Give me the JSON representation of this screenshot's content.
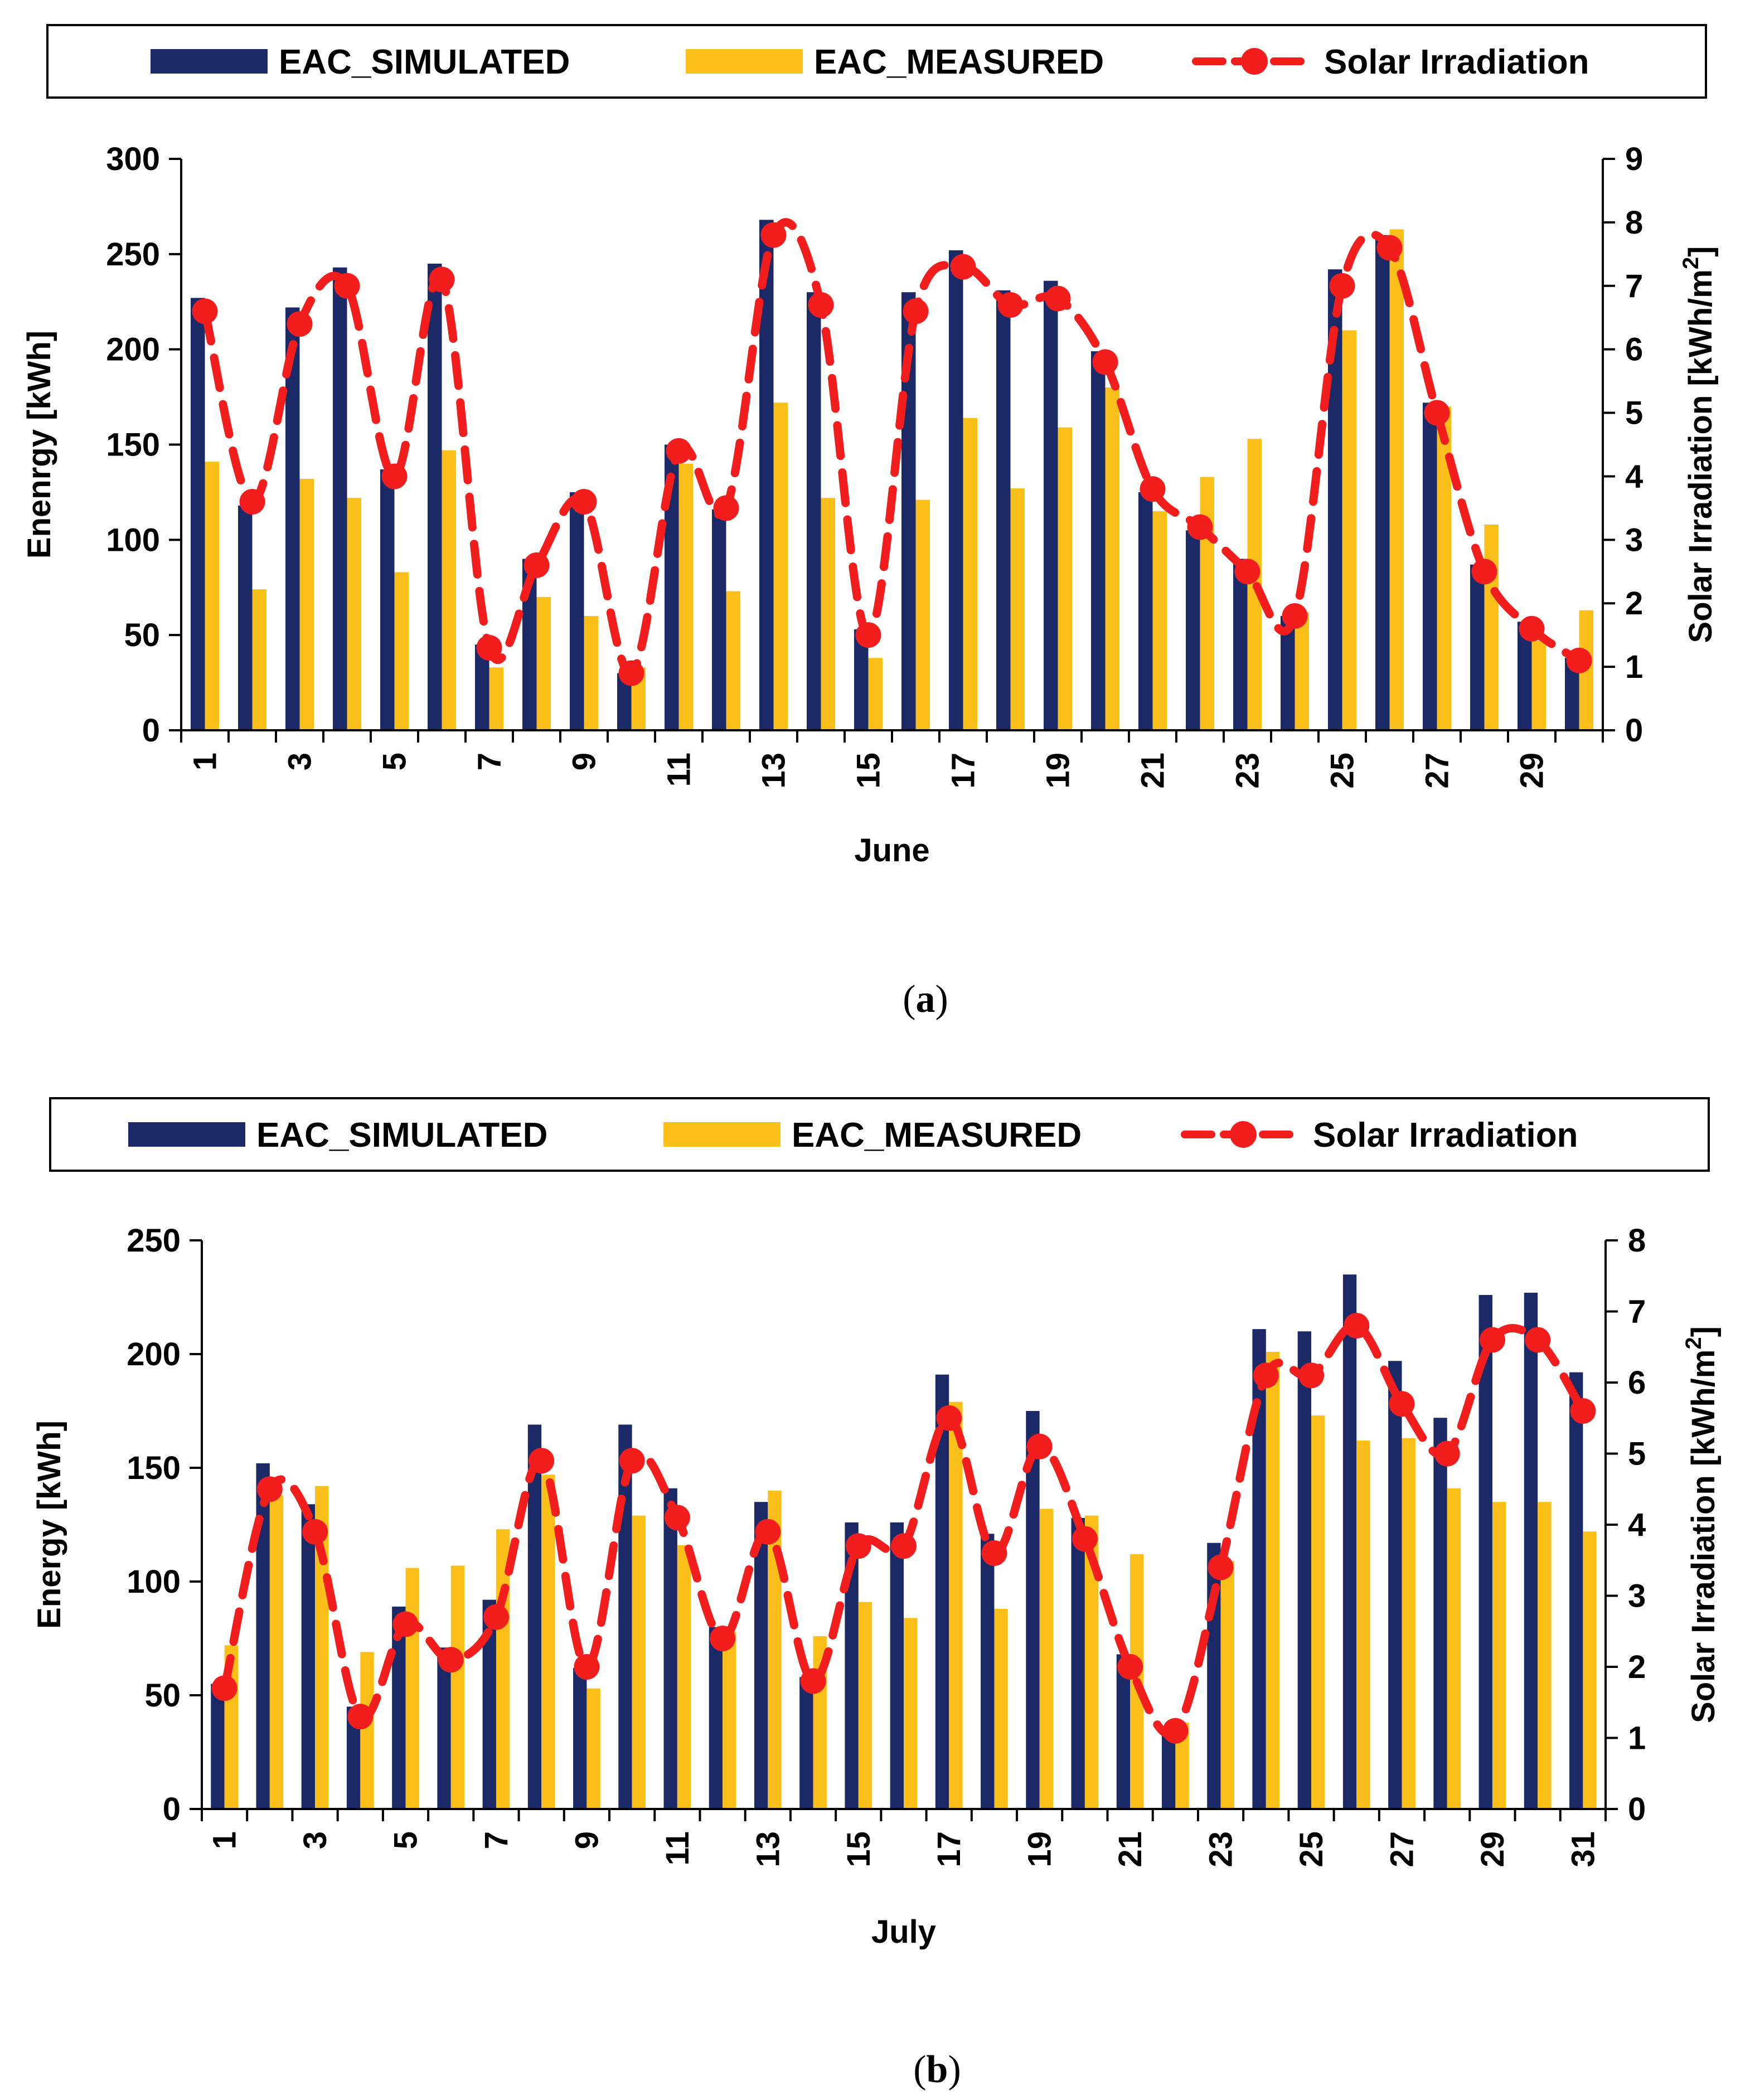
{
  "chart_data": [
    {
      "id": "a",
      "type": "bar",
      "caption": "(a)",
      "caption_letter": "a",
      "caption_open": "(",
      "caption_close": ")",
      "xlabel": "June",
      "ylabel": "Enenrgy [kWh]",
      "y2label_base": "Solar Irradiation [kWh/m",
      "y2label_sup": "2",
      "y2label_end": "]",
      "ylim": [
        0,
        300
      ],
      "yticks": [
        0,
        50,
        100,
        150,
        200,
        250,
        300
      ],
      "y2lim": [
        0,
        9
      ],
      "y2ticks": [
        0,
        1,
        2,
        3,
        4,
        5,
        6,
        7,
        8,
        9
      ],
      "xtick_labels": [
        "1",
        "3",
        "5",
        "7",
        "9",
        "11",
        "13",
        "15",
        "17",
        "19",
        "21",
        "23",
        "25",
        "27",
        "29"
      ],
      "categories": [
        1,
        2,
        3,
        4,
        5,
        6,
        7,
        8,
        9,
        10,
        11,
        12,
        13,
        14,
        15,
        16,
        17,
        18,
        19,
        20,
        21,
        22,
        23,
        24,
        25,
        26,
        27,
        28,
        29,
        30
      ],
      "legend": [
        "EAC_SIMULATED",
        "EAC_MEASURED",
        "Solar Irradiation"
      ],
      "colors": {
        "simulated": "#1b2a66",
        "measured": "#fbbf1a",
        "irradiation": "#f21d1d"
      },
      "series": [
        {
          "name": "EAC_SIMULATED",
          "values": [
            227,
            118,
            222,
            243,
            137,
            245,
            45,
            90,
            125,
            30,
            150,
            116,
            268,
            230,
            53,
            230,
            252,
            231,
            236,
            199,
            125,
            105,
            90,
            60,
            242,
            260,
            172,
            87,
            57,
            38
          ]
        },
        {
          "name": "EAC_MEASURED",
          "values": [
            141,
            74,
            132,
            122,
            83,
            147,
            33,
            70,
            60,
            33,
            140,
            73,
            172,
            122,
            38,
            121,
            164,
            127,
            159,
            180,
            115,
            133,
            153,
            62,
            210,
            263,
            170,
            108,
            47,
            63
          ]
        },
        {
          "name": "Solar Irradiation",
          "axis": "right",
          "values": [
            6.6,
            3.6,
            6.4,
            7.0,
            4.0,
            7.1,
            1.3,
            2.6,
            3.6,
            0.9,
            4.4,
            3.5,
            7.8,
            6.7,
            1.5,
            6.6,
            7.3,
            6.7,
            6.8,
            5.8,
            3.8,
            3.2,
            2.5,
            1.8,
            7.0,
            7.6,
            5.0,
            2.5,
            1.6,
            1.1
          ]
        }
      ]
    },
    {
      "id": "b",
      "type": "bar",
      "caption": "(b)",
      "caption_letter": "b",
      "caption_open": "(",
      "caption_close": ")",
      "xlabel": "July",
      "ylabel": "Energy [kWh]",
      "y2label_base": "Solar Irradiation [kWh/m",
      "y2label_sup": "2",
      "y2label_end": "]",
      "ylim": [
        0,
        250
      ],
      "yticks": [
        0,
        50,
        100,
        150,
        200,
        250
      ],
      "y2lim": [
        0,
        8
      ],
      "y2ticks": [
        0,
        1,
        2,
        3,
        4,
        5,
        6,
        7,
        8
      ],
      "xtick_labels": [
        "1",
        "3",
        "5",
        "7",
        "9",
        "11",
        "13",
        "15",
        "17",
        "19",
        "21",
        "23",
        "25",
        "27",
        "29",
        "31"
      ],
      "categories": [
        1,
        2,
        3,
        4,
        5,
        6,
        7,
        8,
        9,
        10,
        11,
        12,
        13,
        14,
        15,
        16,
        17,
        18,
        19,
        20,
        21,
        22,
        23,
        24,
        25,
        26,
        27,
        28,
        29,
        30,
        31
      ],
      "legend": [
        "EAC_SIMULATED",
        "EAC_MEASURED",
        "Solar Irradiation"
      ],
      "colors": {
        "simulated": "#1b2a66",
        "measured": "#fbbf1a",
        "irradiation": "#f21d1d"
      },
      "series": [
        {
          "name": "EAC_SIMULATED",
          "values": [
            55,
            152,
            134,
            45,
            89,
            71,
            92,
            169,
            62,
            169,
            141,
            80,
            135,
            58,
            126,
            126,
            191,
            121,
            175,
            128,
            68,
            35,
            117,
            211,
            210,
            235,
            197,
            172,
            226,
            227,
            192
          ]
        },
        {
          "name": "EAC_MEASURED",
          "values": [
            72,
            138,
            142,
            69,
            106,
            107,
            123,
            147,
            53,
            129,
            116,
            78,
            140,
            76,
            91,
            84,
            179,
            88,
            132,
            129,
            112,
            38,
            109,
            201,
            173,
            162,
            163,
            141,
            135,
            135,
            122
          ]
        },
        {
          "name": "Solar Irradiation",
          "axis": "right",
          "values": [
            1.7,
            4.5,
            3.9,
            1.3,
            2.6,
            2.1,
            2.7,
            4.9,
            2.0,
            4.9,
            4.1,
            2.4,
            3.9,
            1.8,
            3.7,
            3.7,
            5.5,
            3.6,
            5.1,
            3.8,
            2.0,
            1.1,
            3.4,
            6.1,
            6.1,
            6.8,
            5.7,
            5.0,
            6.6,
            6.6,
            5.6
          ]
        }
      ]
    }
  ]
}
